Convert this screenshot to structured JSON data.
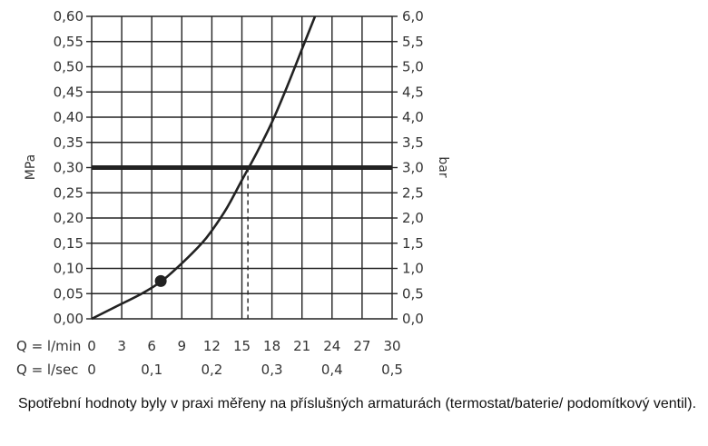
{
  "chart_data": {
    "type": "line",
    "title": "",
    "ylabel_left": "MPa",
    "ylabel_right": "bar",
    "xlim": [
      0,
      30
    ],
    "ylim": [
      0,
      0.6
    ],
    "grid": true,
    "left_ticks": [
      "0,00",
      "0,05",
      "0,10",
      "0,15",
      "0,20",
      "0,25",
      "0,30",
      "0,35",
      "0,40",
      "0,45",
      "0,50",
      "0,55",
      "0,60"
    ],
    "right_ticks": [
      "0,0",
      "0,5",
      "1,0",
      "1,5",
      "2,0",
      "2,5",
      "3,0",
      "3,5",
      "4,0",
      "4,5",
      "5,0",
      "5,5",
      "6,0"
    ],
    "x_rows": [
      {
        "label": "Q = l/min",
        "ticks": [
          {
            "x": 0,
            "text": "0"
          },
          {
            "x": 3,
            "text": "3"
          },
          {
            "x": 6,
            "text": "6"
          },
          {
            "x": 9,
            "text": "9"
          },
          {
            "x": 12,
            "text": "12"
          },
          {
            "x": 15,
            "text": "15"
          },
          {
            "x": 18,
            "text": "18"
          },
          {
            "x": 21,
            "text": "21"
          },
          {
            "x": 24,
            "text": "24"
          },
          {
            "x": 27,
            "text": "27"
          },
          {
            "x": 30,
            "text": "30"
          }
        ]
      },
      {
        "label": "Q = l/sec",
        "ticks": [
          {
            "x": 0,
            "text": "0"
          },
          {
            "x": 6,
            "text": "0,1"
          },
          {
            "x": 12,
            "text": "0,2"
          },
          {
            "x": 18,
            "text": "0,3"
          },
          {
            "x": 24,
            "text": "0,4"
          },
          {
            "x": 30,
            "text": "0,5"
          }
        ]
      }
    ],
    "series": [
      {
        "points": [
          [
            0,
            0
          ],
          [
            2.5,
            0.025
          ],
          [
            5,
            0.05
          ],
          [
            7,
            0.075
          ],
          [
            9,
            0.11
          ],
          [
            11,
            0.15
          ],
          [
            12,
            0.175
          ],
          [
            13.5,
            0.22
          ],
          [
            15,
            0.275
          ],
          [
            16.5,
            0.33
          ],
          [
            18,
            0.39
          ],
          [
            19.5,
            0.46
          ],
          [
            21,
            0.535
          ],
          [
            22.3,
            0.6
          ]
        ]
      }
    ],
    "reference_line": {
      "y": 0.3
    },
    "intersection": {
      "x": 15.6,
      "y": 0.3
    },
    "marker": {
      "x": 6.9,
      "y": 0.075
    }
  },
  "caption": "Spotřební hodnoty byly v praxi měřeny na příslušných armaturách (termostat/baterie/ podomítkový ventil)."
}
